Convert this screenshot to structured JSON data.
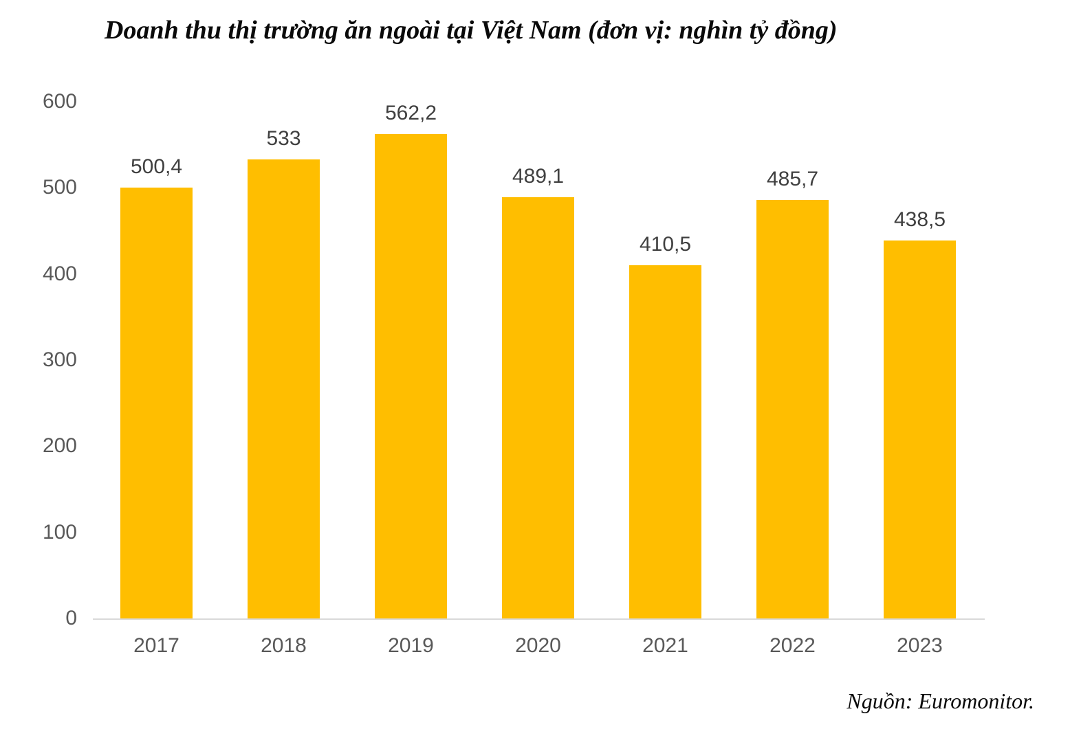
{
  "title": {
    "text": "Doanh thu thị trường ăn ngoài tại Việt Nam (đơn vị: nghìn tỷ đồng)"
  },
  "source": {
    "text": "Nguồn: Euromonitor."
  },
  "chart_data": {
    "type": "bar",
    "title": "Doanh thu thị trường ăn ngoài tại Việt Nam (đơn vị: nghìn tỷ đồng)",
    "categories": [
      "2017",
      "2018",
      "2019",
      "2020",
      "2021",
      "2022",
      "2023"
    ],
    "values": [
      500.4,
      533,
      562.2,
      489.1,
      410.5,
      485.7,
      438.5
    ],
    "value_labels": [
      "500,4",
      "533",
      "562,2",
      "489,1",
      "410,5",
      "485,7",
      "438,5"
    ],
    "xlabel": "",
    "ylabel": "",
    "ylim": [
      0,
      600
    ],
    "yticks": [
      0,
      100,
      200,
      300,
      400,
      500,
      600
    ],
    "grid": false,
    "legend": "none",
    "source": "Nguồn: Euromonitor.",
    "colors": {
      "bar": "#ffbe00",
      "value_label": "#404040",
      "axis_tick_label": "#595959",
      "axis_line": "#d9d9d9",
      "title": "#0a0a0a"
    }
  }
}
